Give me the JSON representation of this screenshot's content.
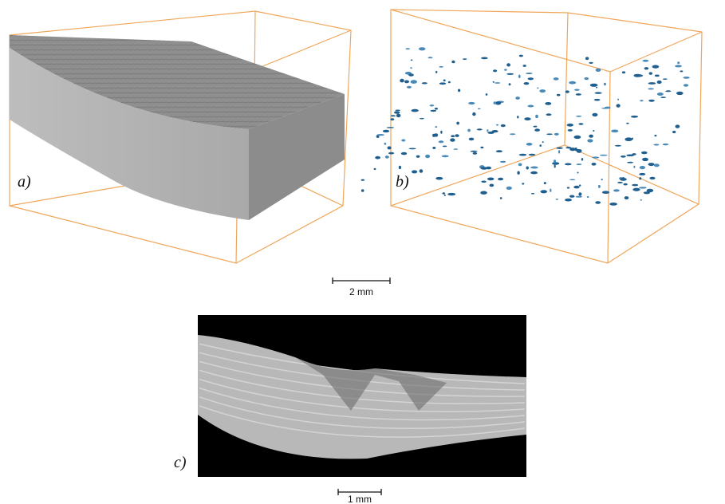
{
  "panels": [
    {
      "label": "a)"
    },
    {
      "label": "b)"
    },
    {
      "label": "c)"
    }
  ],
  "scale_bars": [
    {
      "label": "2 mm"
    },
    {
      "label": "1 mm"
    }
  ]
}
